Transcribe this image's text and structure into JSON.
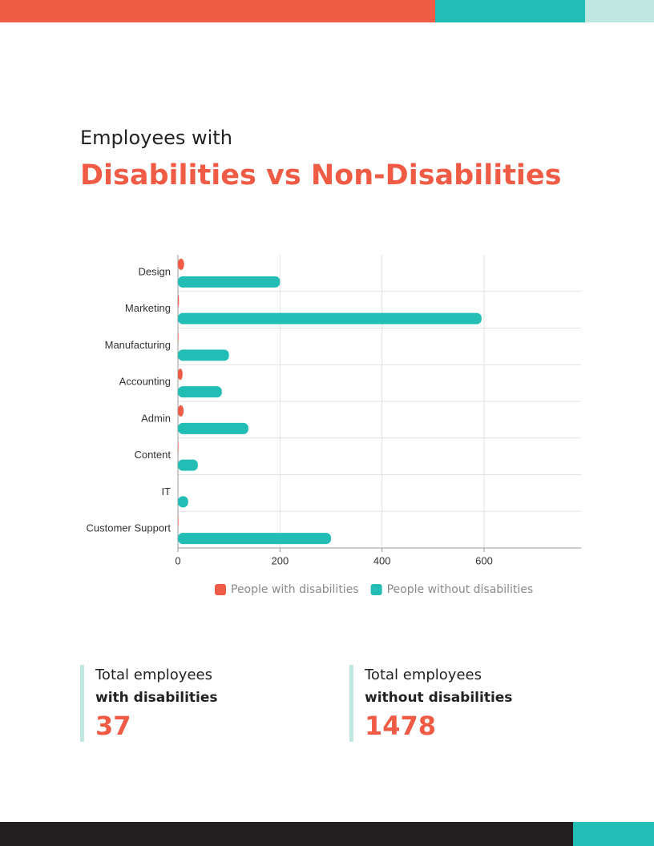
{
  "header": {
    "kicker": "Employees with",
    "title": "Disabilities vs Non-Disabilities"
  },
  "chart_data": {
    "type": "hbar",
    "categories": [
      "Design",
      "Marketing",
      "Manufacturing",
      "Accounting",
      "Admin",
      "Content",
      "IT",
      "Customer Support"
    ],
    "series": [
      {
        "name": "People with disabilities",
        "color": "#ef5b45",
        "values": [
          12,
          2,
          1,
          9,
          11,
          1,
          0,
          1
        ]
      },
      {
        "name": "People without disabilities",
        "color": "#22bdb5",
        "values": [
          200,
          595,
          100,
          86,
          138,
          39,
          20,
          300
        ]
      }
    ],
    "xlim": [
      0,
      790
    ],
    "xticks": [
      0,
      200,
      400,
      600
    ],
    "grid": true,
    "legend": "bottom"
  },
  "stats": [
    {
      "label": "Total employees",
      "emphasis": "with disabilities",
      "value": 37
    },
    {
      "label": "Total employees",
      "emphasis": "without disabilities",
      "value": 1478
    }
  ]
}
